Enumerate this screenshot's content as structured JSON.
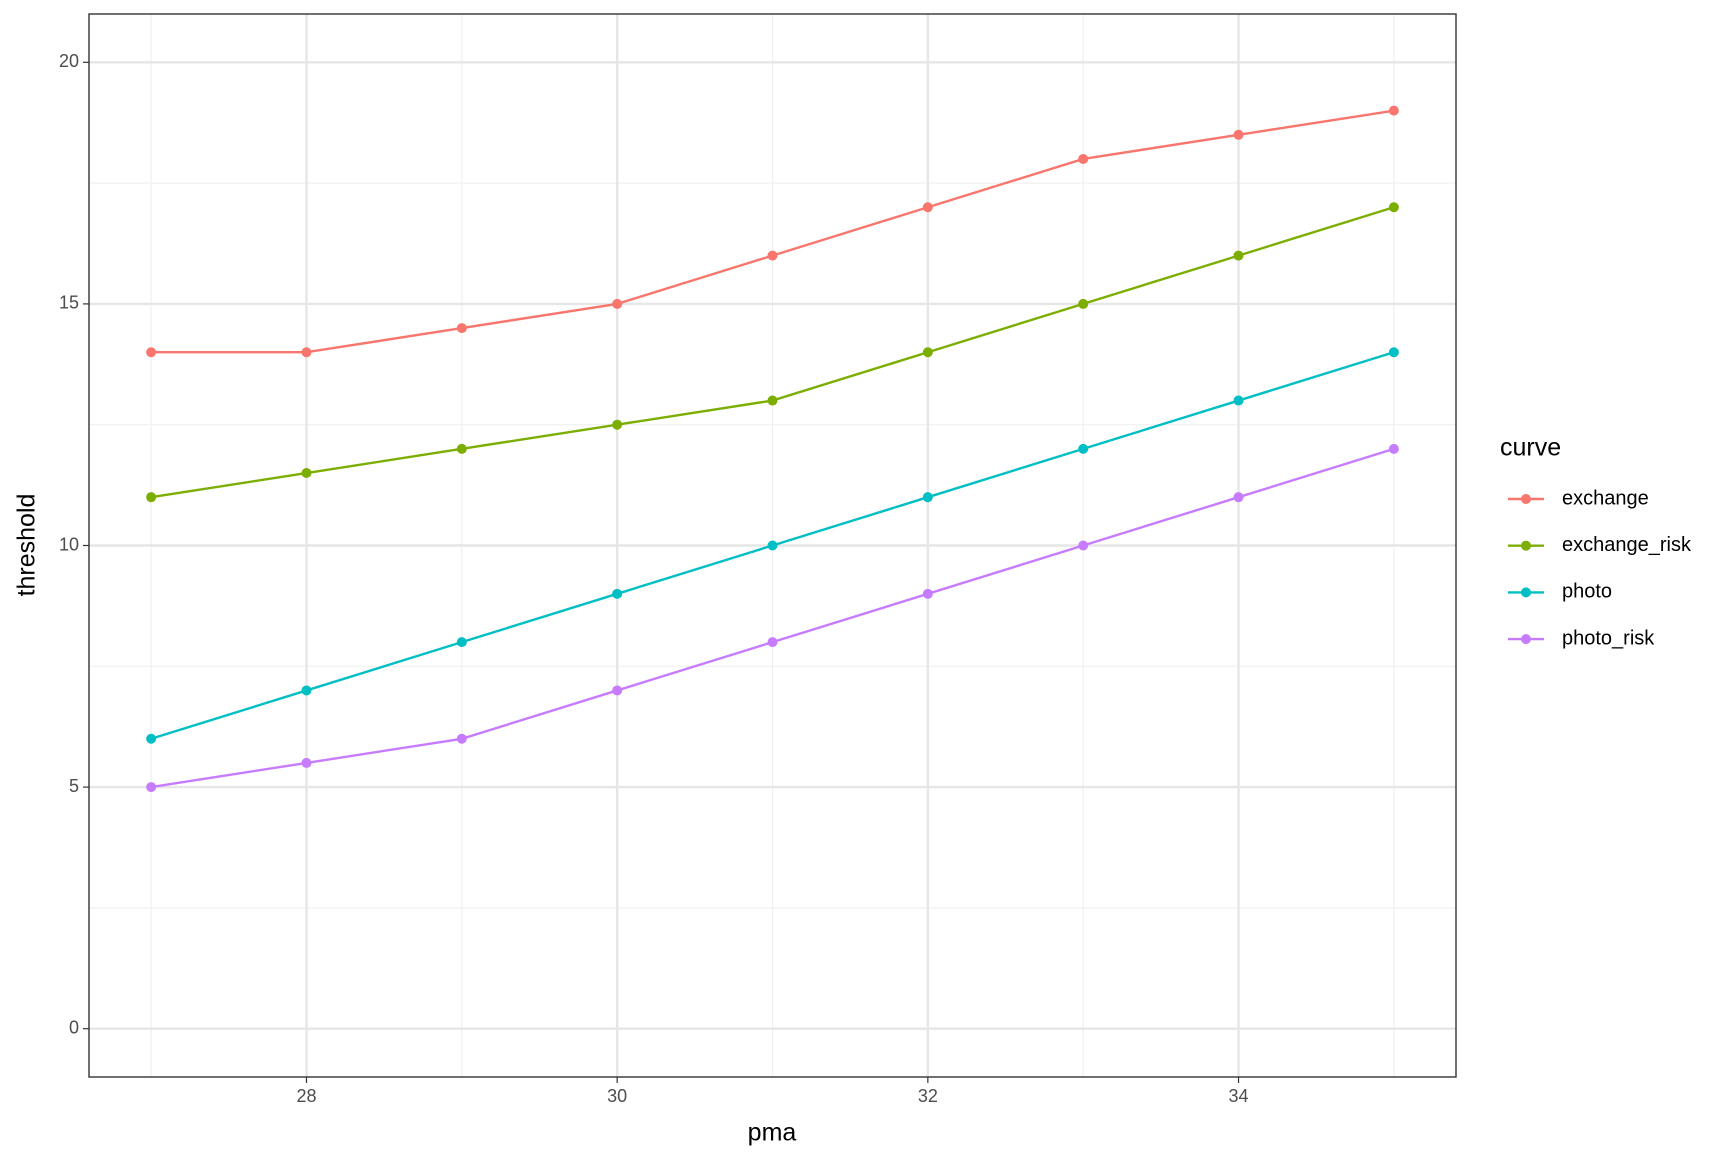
{
  "chart_data": {
    "type": "line",
    "x": [
      27,
      28,
      29,
      30,
      31,
      32,
      33,
      34,
      35
    ],
    "series": [
      {
        "name": "exchange",
        "color": "#f8766d",
        "values": [
          14,
          14,
          14.5,
          15,
          16,
          17,
          18,
          18.5,
          19
        ]
      },
      {
        "name": "exchange_risk",
        "color": "#7cae00",
        "values": [
          11,
          11.5,
          12,
          12.5,
          13,
          14,
          15,
          16,
          17
        ]
      },
      {
        "name": "photo",
        "color": "#00bfc4",
        "values": [
          6,
          7,
          8,
          9,
          10,
          11,
          12,
          13,
          14
        ]
      },
      {
        "name": "photo_risk",
        "color": "#c77cff",
        "values": [
          5,
          5.5,
          6,
          7,
          8,
          9,
          10,
          11,
          12
        ]
      }
    ],
    "x_label": "pma",
    "y_label": "threshold",
    "legend_title": "curve",
    "xlim": [
      26.6,
      35.4
    ],
    "xticks": [
      28,
      30,
      32,
      34
    ],
    "ylim": [
      -1,
      21
    ],
    "yticks": [
      0,
      5,
      10,
      15,
      20
    ],
    "grid": true,
    "legend_position": "right"
  }
}
